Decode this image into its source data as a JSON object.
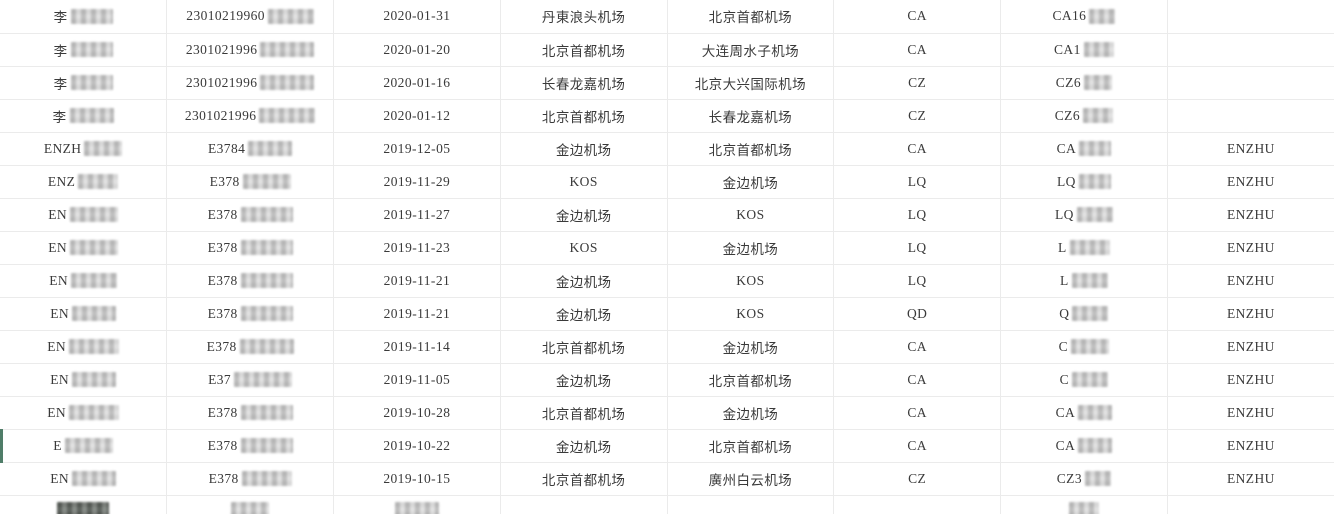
{
  "colors": {
    "grid_line": "#ebebeb",
    "text": "#3a3a3a",
    "background": "#ffffff",
    "row_marker_green": "#4f7d68",
    "redaction_blob_light": "#d6d6d6",
    "redaction_blob_dark": "#6f736f"
  },
  "table": {
    "description": "flight-records-grid",
    "columns": [
      "name",
      "id-number",
      "flight-date",
      "departure-airport",
      "arrival-airport",
      "airline-code",
      "flight-number",
      "passenger-tag"
    ],
    "green_row_index": 13,
    "rows": [
      {
        "cells": [
          {
            "t": "李",
            "b": 42
          },
          {
            "t": "23010219960",
            "b": 46
          },
          {
            "t": "2020-01-31",
            "b": 0
          },
          {
            "t": "丹東浪头机场",
            "b": 0
          },
          {
            "t": "北京首都机场",
            "b": 0
          },
          {
            "t": "CA",
            "b": 0
          },
          {
            "t": "CA16",
            "b": 26
          },
          {
            "t": "",
            "b": 0
          }
        ]
      },
      {
        "cells": [
          {
            "t": "李",
            "b": 42
          },
          {
            "t": "2301021996",
            "b": 54
          },
          {
            "t": "2020-01-20",
            "b": 0
          },
          {
            "t": "北京首都机场",
            "b": 0
          },
          {
            "t": "大连周水子机场",
            "b": 0
          },
          {
            "t": "CA",
            "b": 0
          },
          {
            "t": "CA1",
            "b": 30
          },
          {
            "t": "",
            "b": 0
          }
        ]
      },
      {
        "cells": [
          {
            "t": "李",
            "b": 42
          },
          {
            "t": "2301021996",
            "b": 54
          },
          {
            "t": "2020-01-16",
            "b": 0
          },
          {
            "t": "长春龙嘉机场",
            "b": 0
          },
          {
            "t": "北京大兴国际机场",
            "b": 0
          },
          {
            "t": "CZ",
            "b": 0
          },
          {
            "t": "CZ6",
            "b": 28
          },
          {
            "t": "",
            "b": 0
          }
        ]
      },
      {
        "cells": [
          {
            "t": "李",
            "b": 44
          },
          {
            "t": "2301021996",
            "b": 56
          },
          {
            "t": "2020-01-12",
            "b": 0
          },
          {
            "t": "北京首都机场",
            "b": 0
          },
          {
            "t": "长春龙嘉机场",
            "b": 0
          },
          {
            "t": "CZ",
            "b": 0
          },
          {
            "t": "CZ6",
            "b": 30
          },
          {
            "t": "",
            "b": 0
          }
        ]
      },
      {
        "cells": [
          {
            "t": "ENZH",
            "b": 38
          },
          {
            "t": "E3784",
            "b": 44
          },
          {
            "t": "2019-12-05",
            "b": 0
          },
          {
            "t": "金边机场",
            "b": 0
          },
          {
            "t": "北京首都机场",
            "b": 0
          },
          {
            "t": "CA",
            "b": 0
          },
          {
            "t": "CA",
            "b": 32
          },
          {
            "t": "ENZHU",
            "b": 0
          }
        ]
      },
      {
        "cells": [
          {
            "t": "ENZ",
            "b": 40
          },
          {
            "t": "E378",
            "b": 48
          },
          {
            "t": "2019-11-29",
            "b": 0
          },
          {
            "t": "KOS",
            "b": 0
          },
          {
            "t": "金边机场",
            "b": 0
          },
          {
            "t": "LQ",
            "b": 0
          },
          {
            "t": "LQ",
            "b": 32
          },
          {
            "t": "ENZHU",
            "b": 0
          }
        ]
      },
      {
        "cells": [
          {
            "t": "EN",
            "b": 48
          },
          {
            "t": "E378",
            "b": 52
          },
          {
            "t": "2019-11-27",
            "b": 0
          },
          {
            "t": "金边机场",
            "b": 0
          },
          {
            "t": "KOS",
            "b": 0
          },
          {
            "t": "LQ",
            "b": 0
          },
          {
            "t": "LQ",
            "b": 36
          },
          {
            "t": "ENZHU",
            "b": 0
          }
        ]
      },
      {
        "cells": [
          {
            "t": "EN",
            "b": 48
          },
          {
            "t": "E378",
            "b": 52
          },
          {
            "t": "2019-11-23",
            "b": 0
          },
          {
            "t": "KOS",
            "b": 0
          },
          {
            "t": "金边机场",
            "b": 0
          },
          {
            "t": "LQ",
            "b": 0
          },
          {
            "t": "L",
            "b": 40
          },
          {
            "t": "ENZHU",
            "b": 0
          }
        ]
      },
      {
        "cells": [
          {
            "t": "EN",
            "b": 46
          },
          {
            "t": "E378",
            "b": 52
          },
          {
            "t": "2019-11-21",
            "b": 0
          },
          {
            "t": "金边机场",
            "b": 0
          },
          {
            "t": "KOS",
            "b": 0
          },
          {
            "t": "LQ",
            "b": 0
          },
          {
            "t": "L",
            "b": 36
          },
          {
            "t": "ENZHU",
            "b": 0
          }
        ]
      },
      {
        "cells": [
          {
            "t": "EN",
            "b": 44
          },
          {
            "t": "E378",
            "b": 52
          },
          {
            "t": "2019-11-21",
            "b": 0
          },
          {
            "t": "金边机场",
            "b": 0
          },
          {
            "t": "KOS",
            "b": 0
          },
          {
            "t": "QD",
            "b": 0
          },
          {
            "t": "Q",
            "b": 36
          },
          {
            "t": "ENZHU",
            "b": 0
          }
        ]
      },
      {
        "cells": [
          {
            "t": "EN",
            "b": 50
          },
          {
            "t": "E378",
            "b": 54
          },
          {
            "t": "2019-11-14",
            "b": 0
          },
          {
            "t": "北京首都机场",
            "b": 0
          },
          {
            "t": "金边机场",
            "b": 0
          },
          {
            "t": "CA",
            "b": 0
          },
          {
            "t": "C",
            "b": 38
          },
          {
            "t": "ENZHU",
            "b": 0
          }
        ]
      },
      {
        "cells": [
          {
            "t": "EN",
            "b": 44
          },
          {
            "t": "E37",
            "b": 58
          },
          {
            "t": "2019-11-05",
            "b": 0
          },
          {
            "t": "金边机场",
            "b": 0
          },
          {
            "t": "北京首都机场",
            "b": 0
          },
          {
            "t": "CA",
            "b": 0
          },
          {
            "t": "C",
            "b": 36
          },
          {
            "t": "ENZHU",
            "b": 0
          }
        ]
      },
      {
        "cells": [
          {
            "t": "EN",
            "b": 50
          },
          {
            "t": "E378",
            "b": 52
          },
          {
            "t": "2019-10-28",
            "b": 0
          },
          {
            "t": "北京首都机场",
            "b": 0
          },
          {
            "t": "金边机场",
            "b": 0
          },
          {
            "t": "CA",
            "b": 0
          },
          {
            "t": "CA",
            "b": 34
          },
          {
            "t": "ENZHU",
            "b": 0
          }
        ]
      },
      {
        "cells": [
          {
            "t": "E",
            "b": 48
          },
          {
            "t": "E378",
            "b": 52
          },
          {
            "t": "2019-10-22",
            "b": 0
          },
          {
            "t": "金边机场",
            "b": 0
          },
          {
            "t": "北京首都机场",
            "b": 0
          },
          {
            "t": "CA",
            "b": 0
          },
          {
            "t": "CA",
            "b": 34
          },
          {
            "t": "ENZHU",
            "b": 0
          }
        ]
      },
      {
        "cells": [
          {
            "t": "EN",
            "b": 44
          },
          {
            "t": "E378",
            "b": 50
          },
          {
            "t": "2019-10-15",
            "b": 0
          },
          {
            "t": "北京首都机场",
            "b": 0
          },
          {
            "t": "廣州白云机场",
            "b": 0
          },
          {
            "t": "CZ",
            "b": 0
          },
          {
            "t": "CZ3",
            "b": 26
          },
          {
            "t": "ENZHU",
            "b": 0
          }
        ]
      }
    ],
    "partial_row": {
      "cells": [
        {
          "t": "",
          "b": 52,
          "dark": true
        },
        {
          "t": "",
          "b": 38,
          "dark": false
        },
        {
          "t": "",
          "b": 44,
          "dark": false
        },
        {
          "t": "",
          "b": 0
        },
        {
          "t": "",
          "b": 0
        },
        {
          "t": "",
          "b": 0
        },
        {
          "t": "",
          "b": 30,
          "dark": false
        },
        {
          "t": "",
          "b": 0
        }
      ]
    }
  }
}
